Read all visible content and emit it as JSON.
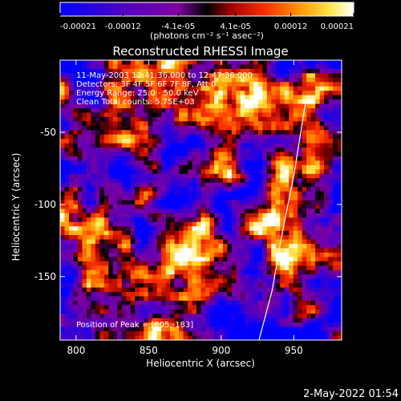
{
  "chart_data": {
    "type": "heatmap",
    "title": "Reconstructed RHESSI Image",
    "xlabel": "Heliocentric X (arcsec)",
    "ylabel": "Heliocentric Y (arcsec)",
    "xlim": [
      789,
      983
    ],
    "ylim": [
      -194,
      0
    ],
    "x_ticks": [
      800,
      850,
      900,
      950
    ],
    "y_ticks": [
      -50,
      -100,
      -150
    ],
    "colorbar": {
      "ticks": [
        "-0.00021",
        "-0.00012",
        "-4.1e-05",
        "4.1e-05",
        "0.00012",
        "0.00021"
      ],
      "tick_values": [
        -0.00021,
        -0.00012,
        -4.1e-05,
        4.1e-05,
        0.00012,
        0.00021
      ],
      "range": [
        -0.00021,
        0.00021
      ],
      "colors": [
        "#0000ff",
        "#5000c0",
        "#8000a0",
        "#000000",
        "#a00000",
        "#ff3000",
        "#ff9a00",
        "#ffe64a",
        "#ffffff"
      ]
    },
    "annotations": [
      "11-May-2003 12:41:36.000 to 12:47:36.000",
      "Detectors: 3F 4F 5F 6F 7F 8F, Att 0",
      "Energy Range: 25.0 - 50.0 keV",
      "Clean    Total counts: 5.75E+03"
    ],
    "peak_label": "Position of Peak = [805,-183]",
    "peak_position": [
      805,
      -183
    ],
    "limb": [
      [
        926,
        -194
      ],
      [
        935,
        -160
      ],
      [
        942,
        -120
      ],
      [
        950,
        -80
      ],
      [
        958,
        -30
      ]
    ]
  },
  "colorbar_units": "(photons cm⁻² s⁻¹ asec⁻²)",
  "timestamp": "2-May-2022 01:54"
}
